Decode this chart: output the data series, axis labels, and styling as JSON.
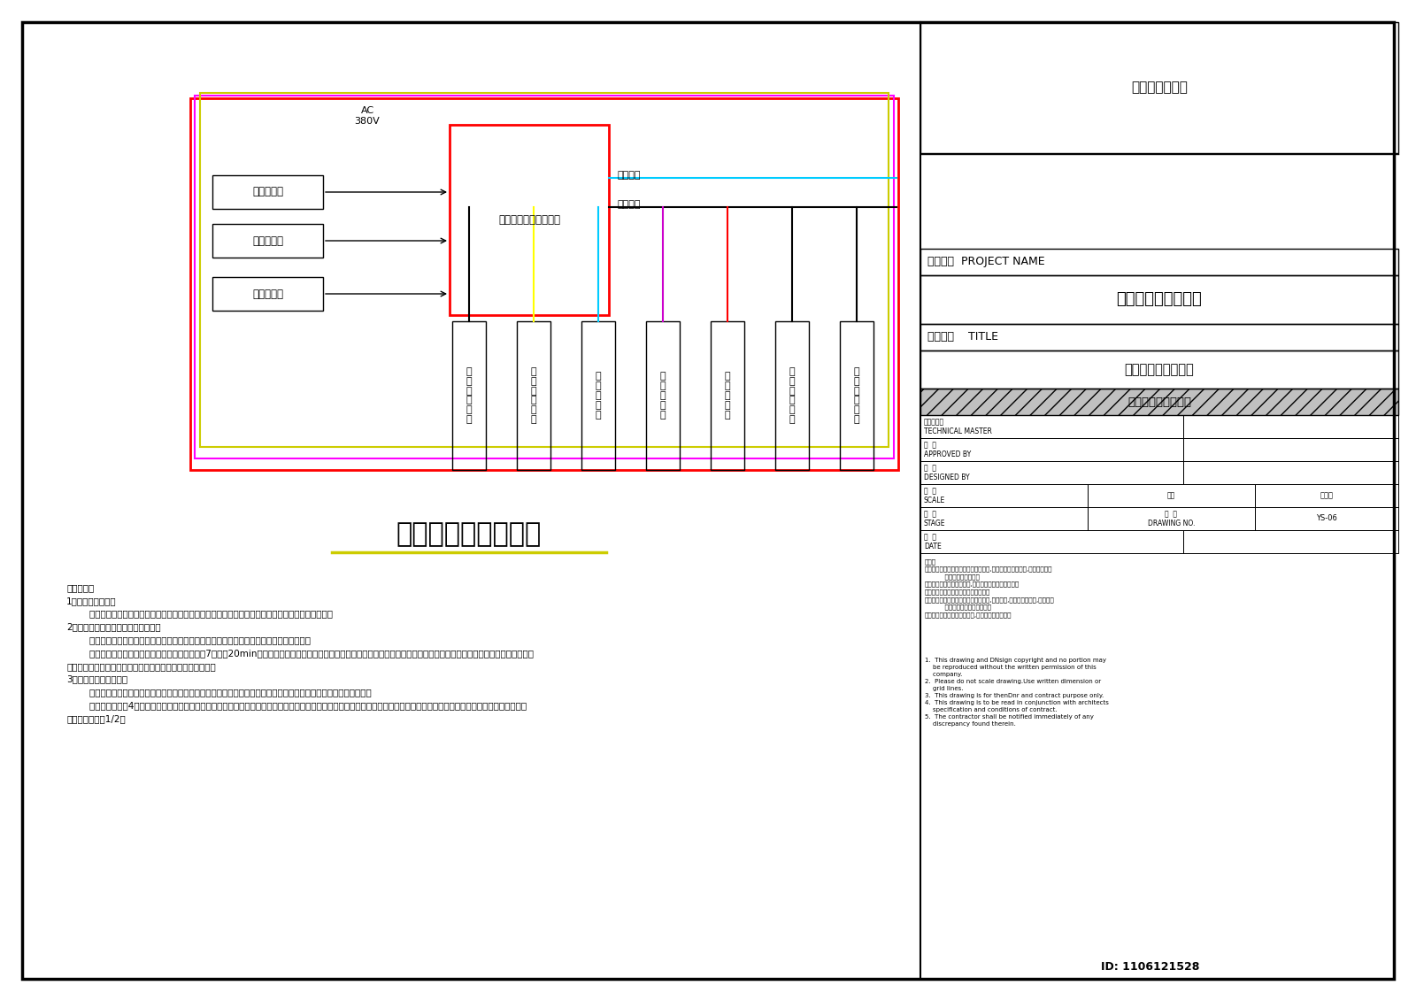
{
  "bg_color": "#ffffff",
  "border_color": "#000000",
  "title": "电气控制原理示意图",
  "title_underline_color": "#cccc00",
  "control_box_label": "电控柜（雨水控制柜）",
  "ac_label1": "AC",
  "ac_label2": "380V",
  "auto_label": "自动控制",
  "manual_label": "手动控制",
  "left_boxes": [
    "设备间液位",
    "蓄水池液位",
    "清水池液位"
  ],
  "bottom_chars": [
    [
      "设",
      "备",
      "间",
      "排",
      "污",
      "泵"
    ],
    [
      "蓄",
      "水",
      "池",
      "排",
      "污",
      "泵"
    ],
    [
      "雨",
      "水",
      "提",
      "升",
      "泵"
    ],
    [
      "回",
      "用",
      "供",
      "水",
      "泵"
    ],
    [
      "补",
      "水",
      "电",
      "磁",
      "阀"
    ],
    [
      "射",
      "流",
      "曝",
      "气",
      "装",
      "置"
    ],
    [
      "紫",
      "外",
      "线",
      "消",
      "毒",
      "器"
    ]
  ],
  "wire_colors": [
    "#000000",
    "#ffff00",
    "#00ccff",
    "#cc00cc",
    "#ff0000",
    "#000000",
    "#000000"
  ],
  "outer_rect_color": "#ff0000",
  "magenta_rect_color": "#ff00ff",
  "yellow_rect_color": "#cccc00",
  "cyan_line_color": "#00ccff",
  "right_panel_title": "技术出图专用章",
  "proj_name_label": "项目名称  PROJECT NAME",
  "proj_name_value": "雨水回收与利用项目",
  "drawing_name_label": "图纸名称    TITLE",
  "drawing_name_value": "电气控制原理示意图",
  "system_name": "雨水收集与利用系统",
  "drawing_no_value": "YS-06",
  "control_requirements": "控制要求：\n1、总体控制要求：\n        所有设备（单独）具备手动和自动控制功能，故障声光报警并自动将备用设备（如果有）投入运行。\n2、蓄水池液位及相关水泵控制要求：\n        蓄水池一般设低、高两个液位，分别为蓄水池雨水提升泵停泵液位、雨水提升泵启泵液位。\n        蓄水池排污泵根据时间和液位控制，初步设定每7天开启20min，同时受蓄水池中液位的控制，低液位停泵；雨水提升泵的启停由蓄水池液位控制，低液位时水泵关闭，高液位时\n水泵开启；注意当清水池内达到高液位时，雨水提升泵关闭。\n3、回用供水分控制要求\n        回用供水泵由雨水控制柜控制，根据水压变化自动调节转速；清水池低液位时，水泵关闭；变频柜由主电控柜供电。\n        清水池一般设置4个液位信号，低液位时，供水设备停泵；中低液位时，自来水补水阀打开；中液位时，自来水补水阀关闭；高液位时，关闭雨水提升泵。在雨季，中液位应低于清\n水池有效水深的1/2。",
  "notes_cn": "注意：\n（一）此设计图则之版权归本公司所有,非得本公司书面批准,任何部份不得\n          随意抄写或变更印。\n（二）切勿以比例量度此图,一切按图内数字所示准确。\n（三）此图只供起招标及签合同之用。\n（四）使用此图时应同时参照建筑图则,结构图则,及其它有关图则,施工说明\n          及合约内列明的各项条件。\n（五）承建商如发现有矛盾处,应立即通知本公司。",
  "notes_en": "1.  This drawing and DNsign copyright and no portion may\n    be reproduced without the written permission of this\n    company.\n2.  Please do not scale drawing.Use written dimension or\n    grid lines.\n3.  This drawing is for thenDnr and contract purpose only.\n4.  This drawing is to be read in conjunction with architects\n    specification and conditions of contract.\n5.  The contractor shall be notified immediately of any\n    discrepancy found therein.",
  "id_text": "ID: 1106121528"
}
